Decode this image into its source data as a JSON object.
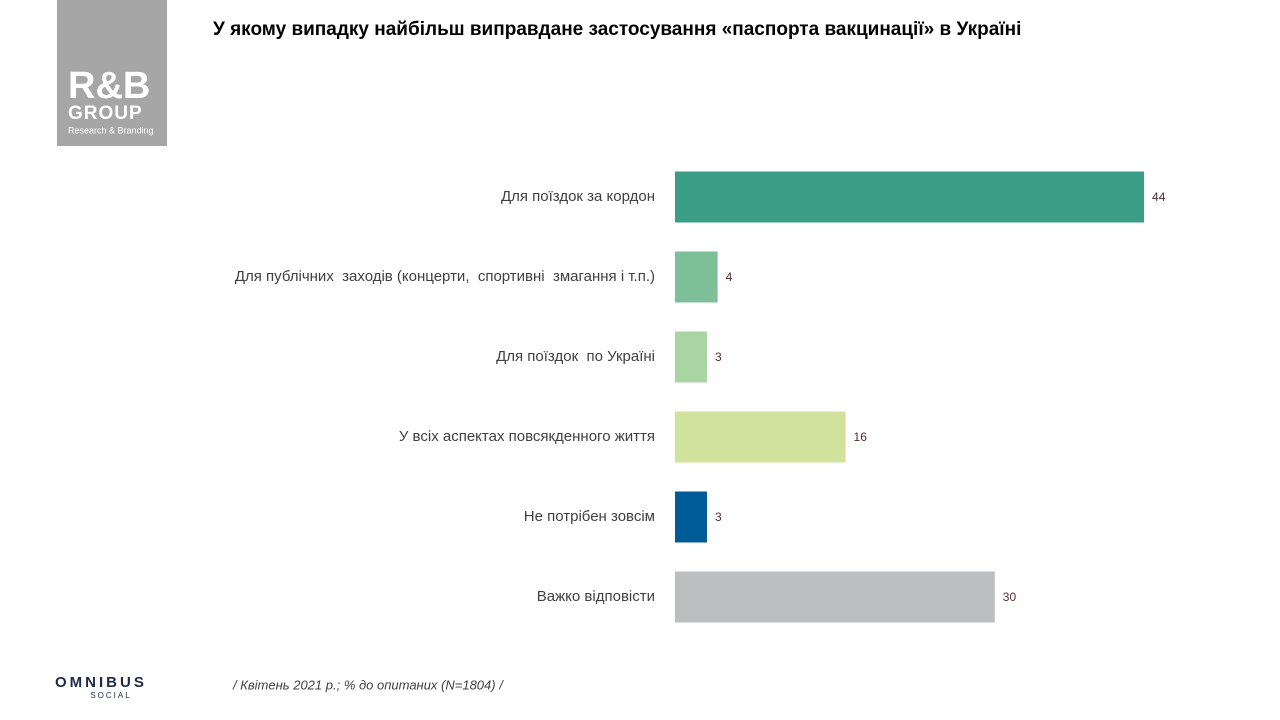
{
  "chart_data": {
    "type": "bar",
    "orientation": "horizontal",
    "title": "У якому випадку найбільш виправдане застосування «паспорта вакцинації» в Україні",
    "categories": [
      "Для поїздок за кордон",
      "Для публічних  заходів (концерти,  спортивні  змагання і т.п.)",
      "Для поїздок  по Україні",
      "У всіх аспектах повсякденного життя",
      "Не потрібен зовсім",
      "Важко відповісти"
    ],
    "values": [
      44,
      4,
      3,
      16,
      3,
      30
    ],
    "colors": [
      "#3a9e86",
      "#7dbf99",
      "#a8d5a2",
      "#d0e29b",
      "#005b96",
      "#bdbec0"
    ],
    "note": "/ Квітень 2021 р.; % до опитаних (N=1804) /"
  },
  "logo": {
    "name": "R&B",
    "group": "GROUP",
    "tagline": "Research & Branding"
  },
  "footer_logo": {
    "name": "OMNIBUS",
    "sub": "SOCIAL"
  }
}
